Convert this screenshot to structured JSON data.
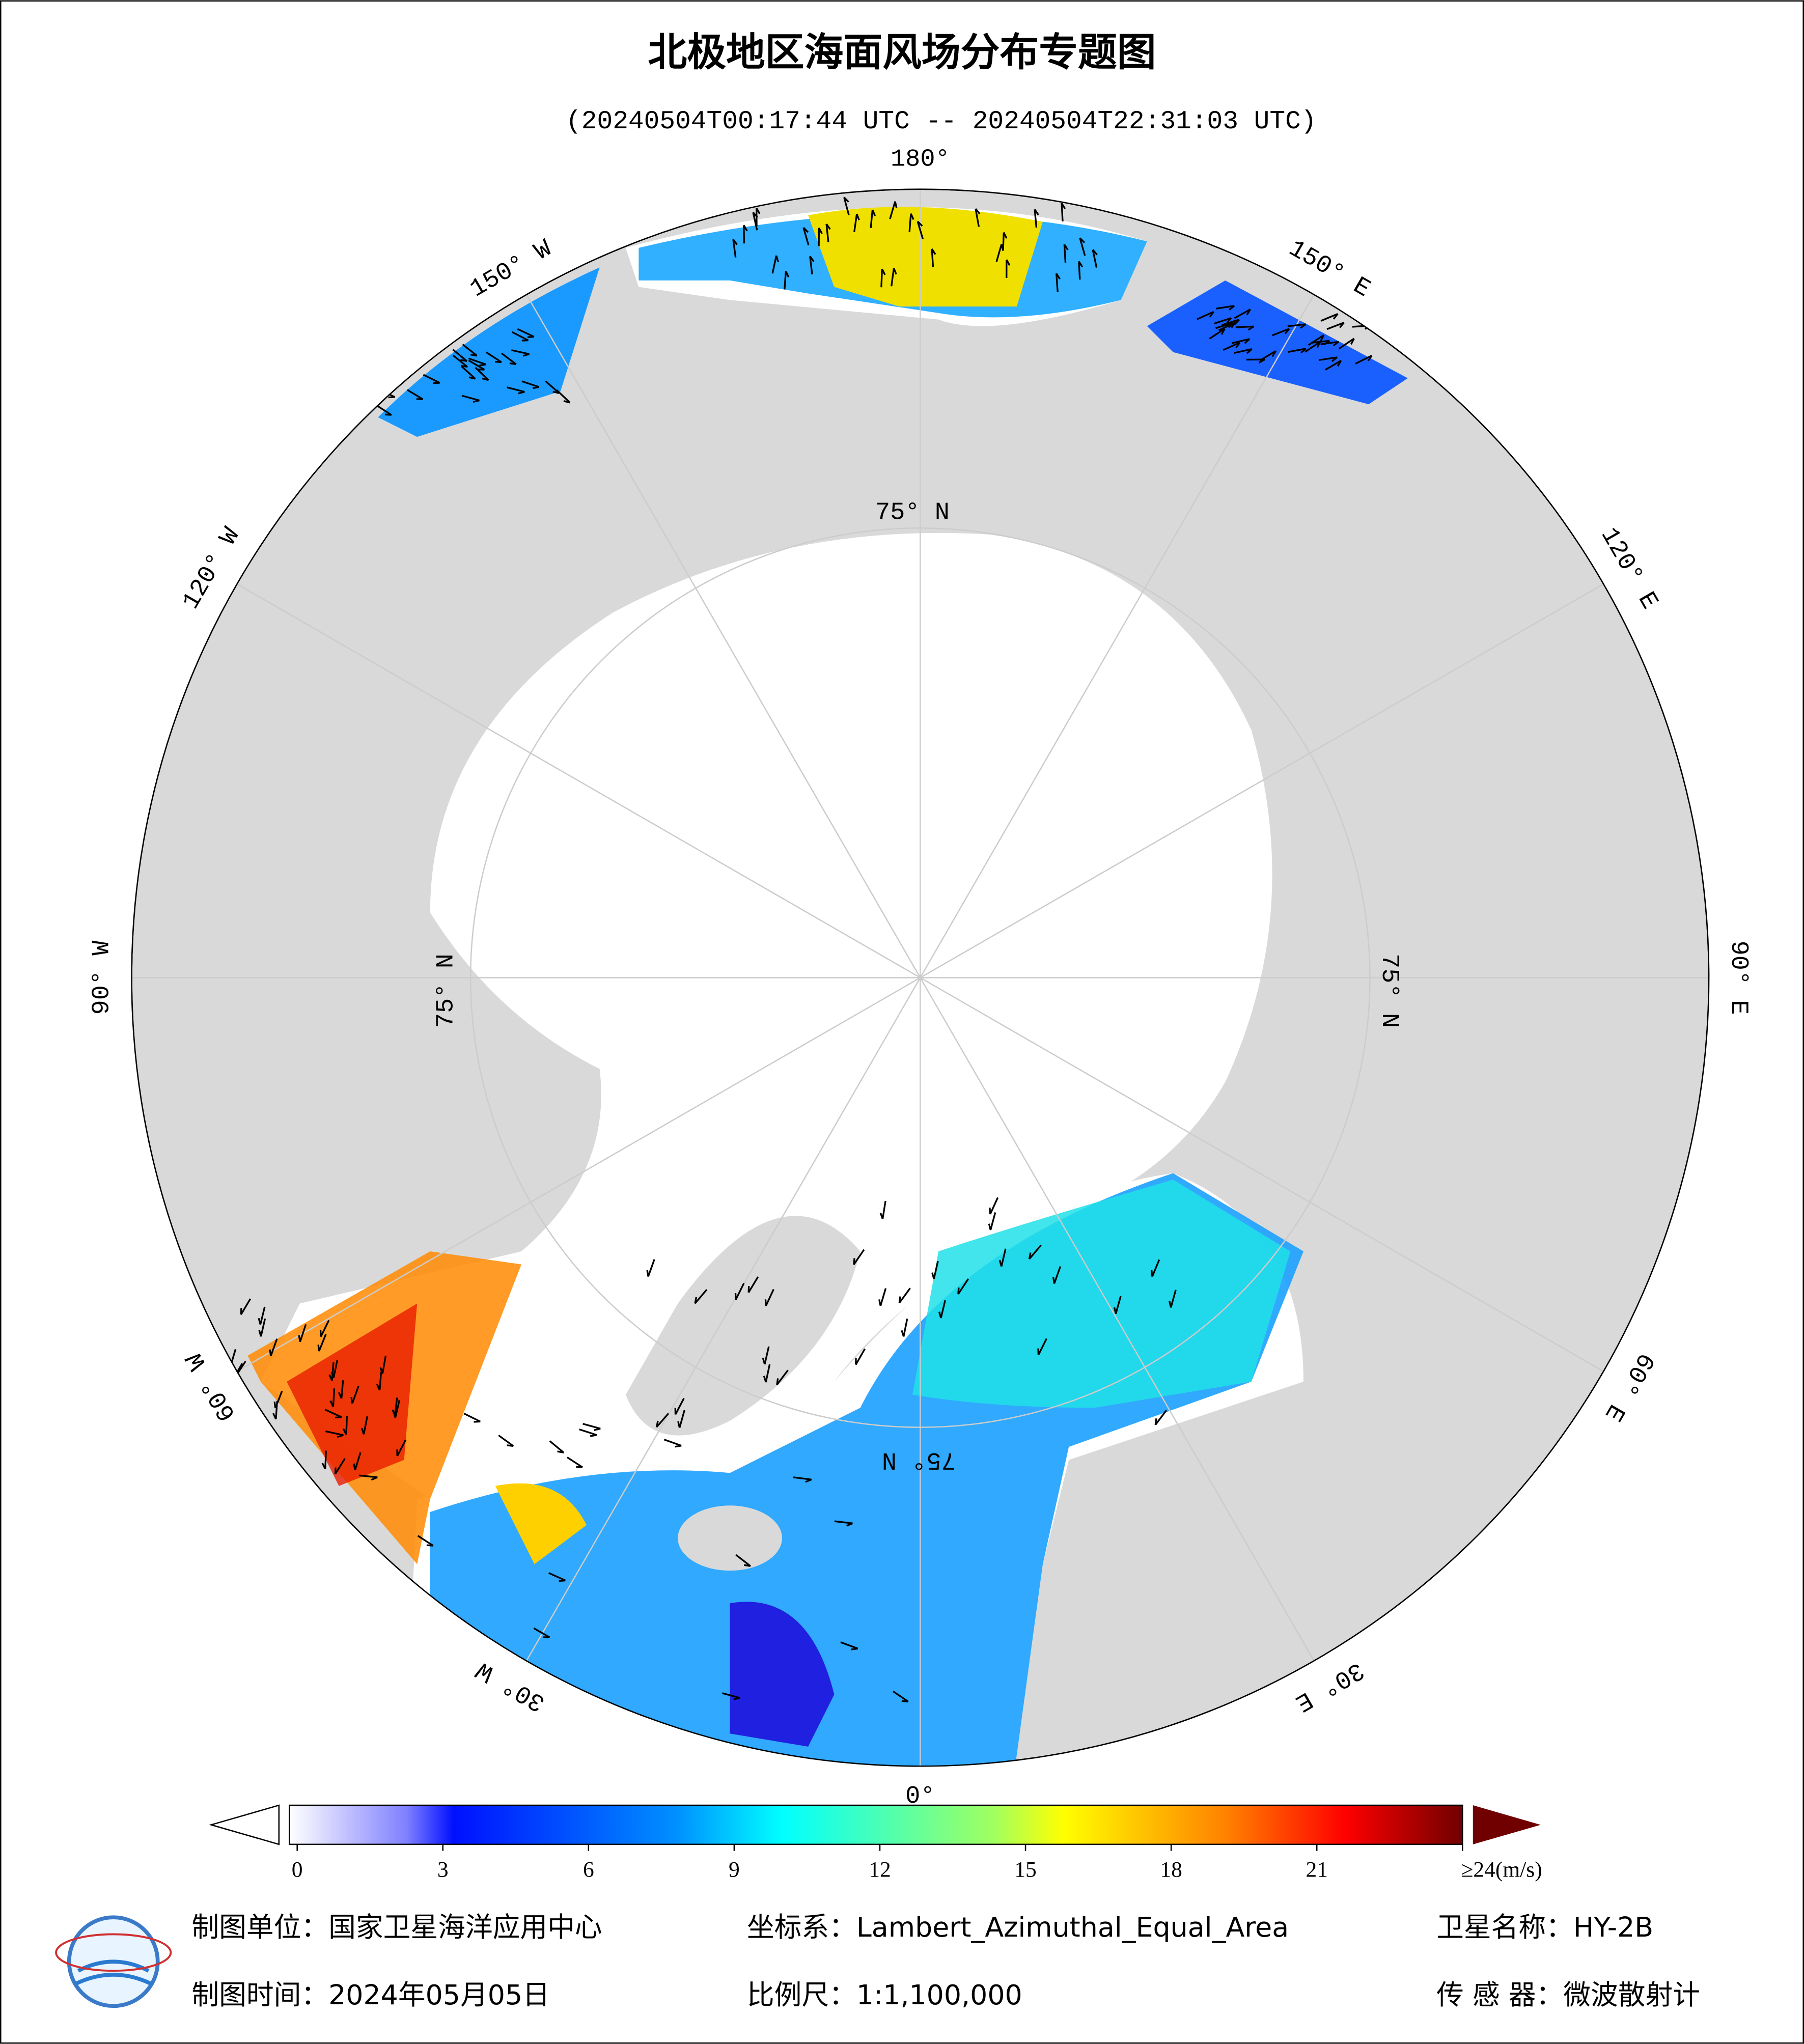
{
  "header": {
    "title": "北极地区海面风场分布专题图",
    "subtitle": "(20240504T00:17:44 UTC -- 20240504T22:31:03 UTC)"
  },
  "map": {
    "longitude_labels": [
      "180°",
      "150° E",
      "120° E",
      "90° E",
      "60° E",
      "30° E",
      "0°",
      "30° W",
      "60° W",
      "90° W",
      "120° W",
      "150° W"
    ],
    "latitude_labels": [
      "75° N",
      "75° N",
      "75° N",
      "75° N"
    ]
  },
  "colorbar": {
    "lim": [
      0,
      24
    ],
    "ticks": [
      0,
      3,
      6,
      9,
      12,
      15,
      18,
      21,
      {
        "value": 24,
        "label": "≥24(m/s)"
      }
    ]
  },
  "footer": {
    "unit": "制图单位：国家卫星海洋应用中心",
    "projection": "坐标系：Lambert_Azimuthal_Equal_Area",
    "satellite": "卫星名称：HY-2B",
    "date": "制图时间：2024年05月05日",
    "scale": "比例尺：1:1,100,000",
    "sensor": "传 感 器：微波散射计"
  }
}
